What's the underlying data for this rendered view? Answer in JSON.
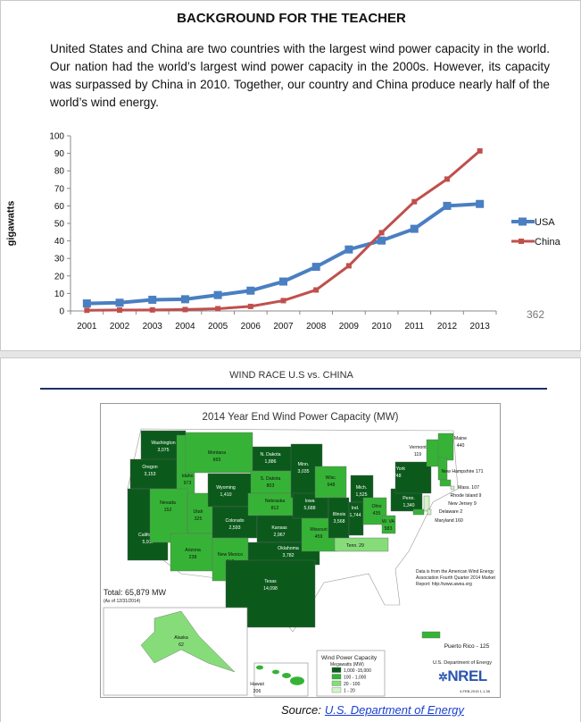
{
  "header": {
    "title": "BACKGROUND FOR THE TEACHER"
  },
  "intro": "United States and China are two countries with the largest wind power capacity in the world.  Our nation had the world’s largest wind power capacity in the 2000s. However, its capacity was surpassed by China in 2010. Together, our country and China produce nearly half of the world’s wind energy.",
  "page_number": "362",
  "chart_data": {
    "type": "line",
    "title": "",
    "xlabel": "",
    "ylabel": "gigawatts",
    "x": [
      "2001",
      "2002",
      "2003",
      "2004",
      "2005",
      "2006",
      "2007",
      "2008",
      "2009",
      "2010",
      "2011",
      "2012",
      "2013"
    ],
    "ylim": [
      0,
      100
    ],
    "yticks": [
      0,
      10,
      20,
      30,
      40,
      50,
      60,
      70,
      80,
      90,
      100
    ],
    "grid": false,
    "legend": "right",
    "series": [
      {
        "name": "USA",
        "color": "#4a7fc1",
        "values": [
          4.3,
          4.7,
          6.4,
          6.7,
          9.1,
          11.6,
          16.8,
          25.2,
          35.1,
          40.2,
          46.9,
          60.0,
          61.1
        ]
      },
      {
        "name": "China",
        "color": "#c0504d",
        "values": [
          0.4,
          0.5,
          0.6,
          0.8,
          1.3,
          2.6,
          5.9,
          12.0,
          25.8,
          44.7,
          62.4,
          75.3,
          91.4
        ]
      }
    ]
  },
  "slide": {
    "subtitle": "WIND RACE   U.S vs. CHINA",
    "map": {
      "title": "2014 Year End Wind Power Capacity (MW)",
      "total": "Total:  65,879 MW",
      "as_of": "(As of 12/31/2014)",
      "note": "Data is from the American Wind Energy Association Fourth Quarter 2014 Market Report: http://www.awea.org",
      "legend_title": "Wind Power Capacity",
      "legend_unit": "Megawatts (MW)",
      "legend": [
        {
          "range": "1,000 -15,000",
          "color": "#0b5a1c"
        },
        {
          "range": "100 - 1,000",
          "color": "#36b336"
        },
        {
          "range": "20 - 100",
          "color": "#86dc79"
        },
        {
          "range": "1 - 20",
          "color": "#d3f3c8"
        }
      ],
      "agency": "U.S. Department of Energy",
      "logo": "NREL",
      "stamp": "4-FEB-2015 1.1.38",
      "states": [
        {
          "name": "Washington",
          "value": "3,075",
          "tier": 0
        },
        {
          "name": "Oregon",
          "value": "3,153",
          "tier": 0
        },
        {
          "name": "California",
          "value": "5,917",
          "tier": 0
        },
        {
          "name": "Idaho",
          "value": "973",
          "tier": 1
        },
        {
          "name": "Montana",
          "value": "665",
          "tier": 1
        },
        {
          "name": "Nevada",
          "value": "152",
          "tier": 1
        },
        {
          "name": "Utah",
          "value": "325",
          "tier": 1
        },
        {
          "name": "Arizona",
          "value": "238",
          "tier": 1
        },
        {
          "name": "Wyoming",
          "value": "1,410",
          "tier": 0
        },
        {
          "name": "Colorado",
          "value": "2,593",
          "tier": 0
        },
        {
          "name": "New Mexico",
          "value": "812",
          "tier": 1
        },
        {
          "name": "N. Dakota",
          "value": "1,886",
          "tier": 0
        },
        {
          "name": "S. Dakota",
          "value": "803",
          "tier": 1
        },
        {
          "name": "Nebraska",
          "value": "812",
          "tier": 1
        },
        {
          "name": "Kansas",
          "value": "2,967",
          "tier": 0
        },
        {
          "name": "Oklahoma",
          "value": "3,782",
          "tier": 0
        },
        {
          "name": "Texas",
          "value": "14,098",
          "tier": 0
        },
        {
          "name": "Minn.",
          "value": "3,035",
          "tier": 0
        },
        {
          "name": "Iowa",
          "value": "5,688",
          "tier": 0
        },
        {
          "name": "Missouri",
          "value": "459",
          "tier": 1
        },
        {
          "name": "Wisc.",
          "value": "648",
          "tier": 1
        },
        {
          "name": "Illinois",
          "value": "3,568",
          "tier": 0
        },
        {
          "name": "Mich.",
          "value": "1,525",
          "tier": 0
        },
        {
          "name": "Ind.",
          "value": "1,744",
          "tier": 0
        },
        {
          "name": "Ohio",
          "value": "435",
          "tier": 1
        },
        {
          "name": "W. VA",
          "value": "583",
          "tier": 1
        },
        {
          "name": "Penn.",
          "value": "1,340",
          "tier": 0
        },
        {
          "name": "New York",
          "value": "1,748",
          "tier": 0
        },
        {
          "name": "Tenn.",
          "value": "29",
          "tier": 2
        },
        {
          "name": "Vermont",
          "value": "119",
          "tier": 1
        },
        {
          "name": "Maine",
          "value": "440",
          "tier": 1
        },
        {
          "name": "New Hampshire",
          "value": "171",
          "tier": 1
        },
        {
          "name": "Mass.",
          "value": "107",
          "tier": 1
        },
        {
          "name": "Rhode Island",
          "value": "9",
          "tier": 3
        },
        {
          "name": "New Jersey",
          "value": "9",
          "tier": 3
        },
        {
          "name": "Delaware",
          "value": "2",
          "tier": 3
        },
        {
          "name": "Maryland",
          "value": "160",
          "tier": 1
        },
        {
          "name": "Alaska",
          "value": "62",
          "tier": 2
        },
        {
          "name": "Hawaii",
          "value": "206",
          "tier": 1
        },
        {
          "name": "Puerto Rico",
          "value": "125",
          "tier": 1
        }
      ]
    },
    "source_label": "Source:",
    "source_link": "U.S. Department of Energy"
  }
}
